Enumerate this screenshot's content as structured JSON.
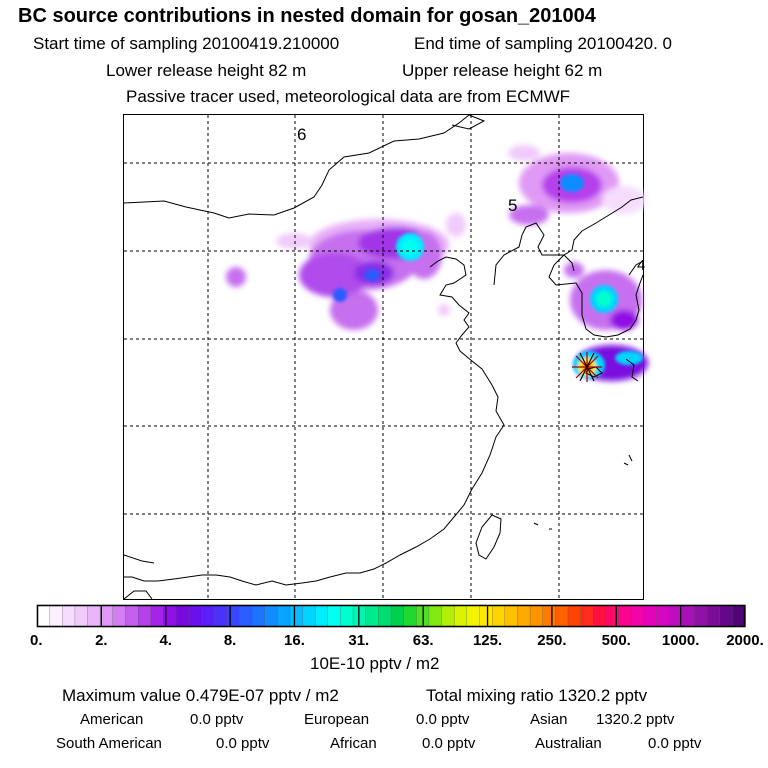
{
  "header": {
    "title": "BC  source contributions in nested domain for gosan_201004",
    "start_time": "Start time of sampling 20100419.210000",
    "end_time": "End time of sampling 20100420.     0",
    "lower_release": "Lower release height   82 m",
    "upper_release": "Upper release height   62 m",
    "tracer_note": "Passive tracer used, meteorological data are from ECMWF"
  },
  "map": {
    "labels": [
      "6",
      "5",
      "4"
    ]
  },
  "colorbar": {
    "ticks": [
      "0.",
      "2.",
      "4.",
      "8.",
      "16.",
      "31.",
      "63.",
      "125.",
      "250.",
      "500.",
      "1000.",
      "2000."
    ],
    "units": "10E-10 pptv / m2",
    "colors": [
      "#ffffff",
      "#fbeefe",
      "#f6ddfd",
      "#f0cbfb",
      "#e9b4f8",
      "#e09af5",
      "#d37ef2",
      "#c55def",
      "#b640ec",
      "#a522e8",
      "#9010e3",
      "#7a08e0",
      "#6a10ec",
      "#5a20f5",
      "#4a32fa",
      "#3a46fd",
      "#2a5cff",
      "#1a74ff",
      "#108cff",
      "#08a4ff",
      "#04bcff",
      "#00d4ff",
      "#00ecff",
      "#00fff0",
      "#00ffd0",
      "#00f5b0",
      "#00ea90",
      "#00de70",
      "#00d050",
      "#20d830",
      "#50e020",
      "#80ea10",
      "#b0f008",
      "#d8f400",
      "#f4f400",
      "#ffe800",
      "#ffd400",
      "#ffc000",
      "#ffaa00",
      "#ff9400",
      "#ff7c00",
      "#ff6000",
      "#ff4400",
      "#ff2a20",
      "#ff1040",
      "#ff0868",
      "#fa0490",
      "#f204a8",
      "#e404b8",
      "#d408c0",
      "#c00cc0",
      "#a810b8",
      "#9010a8",
      "#7a0c98",
      "#640888",
      "#500478"
    ]
  },
  "summary": {
    "max_value": "Maximum value  0.479E-07 pptv / m2",
    "total_mixing": "Total mixing ratio     1320.2 pptv",
    "regions": [
      {
        "name": "American",
        "value": "0.0 pptv"
      },
      {
        "name": "European",
        "value": "0.0 pptv"
      },
      {
        "name": "Asian",
        "value": "1320.2 pptv"
      },
      {
        "name": "South American",
        "value": "0.0 pptv"
      },
      {
        "name": "African",
        "value": "0.0 pptv"
      },
      {
        "name": "Australian",
        "value": "0.0 pptv"
      }
    ]
  }
}
